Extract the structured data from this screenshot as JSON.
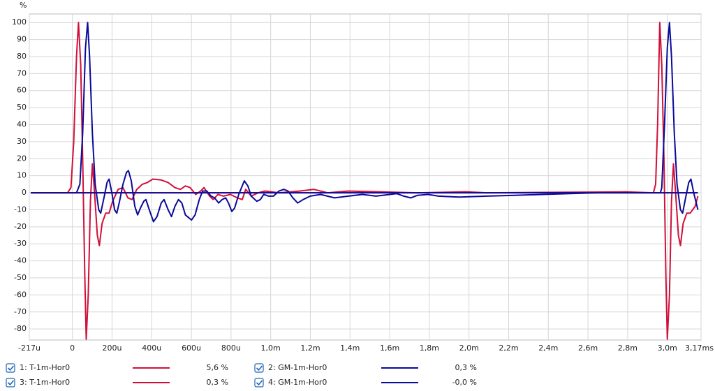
{
  "chart_data": {
    "type": "line",
    "y_label": "%",
    "xlim": [
      -217,
      3170
    ],
    "ylim": [
      -86.5,
      105
    ],
    "grid": true,
    "xticks": [
      {
        "value": -217,
        "label": "-217u"
      },
      0,
      {
        "value": 200,
        "label": "200u"
      },
      {
        "value": 400,
        "label": "400u"
      },
      {
        "value": 600,
        "label": "600u"
      },
      {
        "value": 800,
        "label": "800u"
      },
      {
        "value": 1000,
        "label": "1,0m"
      },
      {
        "value": 1200,
        "label": "1,2m"
      },
      {
        "value": 1400,
        "label": "1,4m"
      },
      {
        "value": 1600,
        "label": "1,6m"
      },
      {
        "value": 1800,
        "label": "1,8m"
      },
      {
        "value": 2000,
        "label": "2,0m"
      },
      {
        "value": 2200,
        "label": "2,2m"
      },
      {
        "value": 2400,
        "label": "2,4m"
      },
      {
        "value": 2600,
        "label": "2,6m"
      },
      {
        "value": 2800,
        "label": "2,8m"
      },
      {
        "value": 3000,
        "label": "3,0m"
      },
      {
        "value": 3170,
        "label": "3,17ms"
      }
    ],
    "yticks": [
      100,
      90,
      80,
      70,
      60,
      50,
      40,
      30,
      20,
      10,
      0,
      -10,
      -20,
      -30,
      -40,
      -50,
      -60,
      -70,
      -80
    ],
    "series": [
      {
        "name": "1: T-1m-Hor0",
        "color": "#d0103a",
        "readout": "5,6 %",
        "x": [
          -210,
          -24,
          -7,
          7,
          21,
          31,
          42,
          52,
          63,
          70,
          80,
          91,
          101,
          112,
          126,
          136,
          150,
          168,
          185,
          203,
          231,
          255,
          280,
          301,
          325,
          353,
          378,
          406,
          448,
          483,
          517,
          545,
          570,
          594,
          622,
          647,
          664,
          692,
          710,
          734,
          762,
          797,
          832,
          857,
          874,
          902,
          937,
          972,
          1042,
          1147,
          1217,
          1287,
          1392,
          1741,
          1986,
          2091,
          2790,
          2930,
          2941,
          2951,
          2962,
          2972,
          2983,
          2993,
          3000,
          3011,
          3021,
          3031,
          3042,
          3056,
          3066,
          3080,
          3098,
          3115,
          3140,
          3154
        ],
        "values": [
          0,
          0,
          3,
          30,
          80,
          100,
          75,
          20,
          -50,
          -86,
          -60,
          -5,
          17,
          0,
          -25,
          -31,
          -18,
          -12,
          -12,
          -5,
          2,
          3,
          -3,
          -4,
          2,
          5,
          6,
          8,
          7.5,
          6,
          3,
          2,
          4,
          3,
          -1,
          1,
          3,
          -2,
          -4,
          -1,
          -2,
          -1,
          -3,
          -4,
          2,
          -2,
          0,
          1,
          0,
          1,
          2,
          0,
          1,
          0,
          0.5,
          0,
          0.5,
          0,
          5,
          40,
          100,
          75,
          20,
          -50,
          -86,
          -60,
          -5,
          17,
          0,
          -25,
          -31,
          -18,
          -12,
          -12,
          -8,
          -2
        ]
      },
      {
        "name": "2: GM-1m-Hor0",
        "color": "#0a0a9a",
        "readout": "0,3 %",
        "x": [
          -210,
          21,
          38,
          52,
          66,
          77,
          87,
          101,
          115,
          133,
          143,
          161,
          175,
          185,
          199,
          213,
          224,
          238,
          255,
          273,
          283,
          297,
          315,
          329,
          343,
          360,
          371,
          388,
          409,
          427,
          448,
          462,
          483,
          500,
          517,
          535,
          552,
          570,
          601,
          619,
          640,
          657,
          678,
          699,
          717,
          738,
          755,
          773,
          787,
          804,
          818,
          839,
          867,
          885,
          902,
          930,
          948,
          965,
          990,
          1014,
          1042,
          1066,
          1087,
          1112,
          1136,
          1164,
          1199,
          1252,
          1322,
          1392,
          1462,
          1531,
          1601,
          1636,
          1671,
          1706,
          1741,
          1794,
          1846,
          1951,
          2091,
          2231,
          2371,
          2510,
          2650,
          2965,
          2972,
          2986,
          3000,
          3011,
          3021,
          3035,
          3049,
          3066,
          3077,
          3094,
          3108,
          3119,
          3133,
          3154
        ],
        "values": [
          0,
          0,
          5,
          35,
          85,
          100,
          80,
          35,
          5,
          -10,
          -12,
          -2,
          6,
          8,
          0,
          -10,
          -12,
          -5,
          5,
          12,
          13,
          7,
          -8,
          -13,
          -9,
          -5,
          -4,
          -10,
          -17,
          -14,
          -6,
          -4,
          -10,
          -14,
          -8,
          -4,
          -6,
          -13,
          -16,
          -13,
          -4,
          1,
          1,
          -2,
          -3,
          -6,
          -4,
          -3,
          -6,
          -11,
          -9,
          -1,
          7,
          4,
          -2,
          -5,
          -4,
          -1,
          -2,
          -2,
          1,
          2,
          1,
          -3,
          -6,
          -4,
          -2,
          -1,
          -3,
          -2,
          -1,
          -2,
          -1,
          -0.5,
          -2,
          -3,
          -1.5,
          -1,
          -2,
          -2.5,
          -2,
          -1.5,
          -1,
          -0.5,
          0,
          0,
          3,
          40,
          85,
          100,
          80,
          35,
          5,
          -10,
          -12,
          -2,
          6,
          8,
          0,
          -10
        ]
      },
      {
        "name": "3: T-1m-Hor0",
        "color": "#d0103a",
        "readout": "0,3 %",
        "x": [
          -210,
          3154
        ],
        "values": [
          0,
          0
        ]
      },
      {
        "name": "4: GM-1m-Hor0",
        "color": "#0a0a9a",
        "readout": "-0,0 %",
        "x": [
          -210,
          3154
        ],
        "values": [
          0,
          0
        ]
      }
    ]
  }
}
